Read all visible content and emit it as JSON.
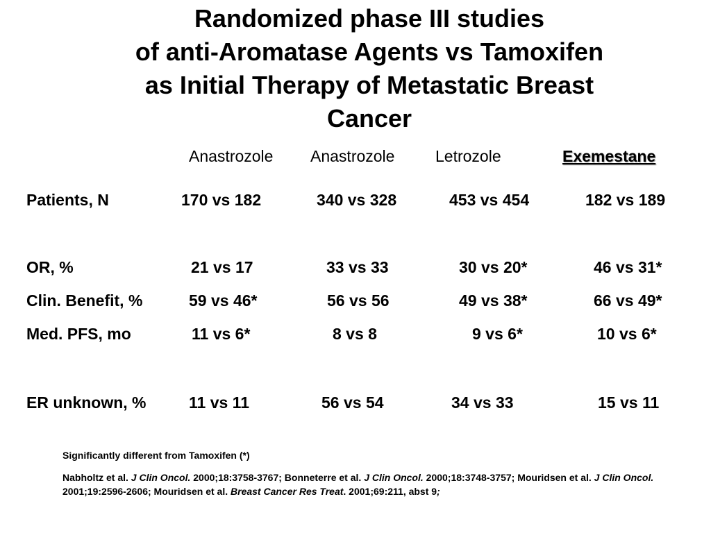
{
  "title": {
    "line1": "Randomized phase III studies",
    "line2": "of anti-Aromatase Agents vs Tamoxifen",
    "line3": "as Initial Therapy of Metastatic Breast",
    "line4": "Cancer"
  },
  "columns": [
    "Anastrozole",
    "Anastrozole",
    "Letrozole",
    "Exemestane"
  ],
  "rows": [
    {
      "label": "Patients, N",
      "values": [
        "170 vs 182",
        "340 vs 328",
        "453 vs 454",
        "182 vs 189"
      ]
    },
    {
      "label": "OR,  %",
      "values": [
        "21 vs 17",
        "33 vs 33",
        "30 vs 20*",
        "46 vs 31*"
      ]
    },
    {
      "label": "Clin. Benefit, %",
      "values": [
        "59 vs 46*",
        "56 vs 56",
        "49 vs 38*",
        "66 vs 49*"
      ]
    },
    {
      "label": "Med.  PFS,  mo",
      "values": [
        "11 vs 6*",
        "8 vs 8",
        "9 vs 6*",
        "10 vs 6*"
      ]
    },
    {
      "label": "ER unknown, %",
      "values": [
        "11 vs 11",
        "56 vs 54",
        "34  vs 33",
        "15 vs 11"
      ]
    }
  ],
  "footnote": "Significantly different from Tamoxifen (*)",
  "references": {
    "r1_author": "Nabholtz et al.  ",
    "r1_journal": "J Clin Oncol.",
    "r1_cite": " 2000;18:3758-3767; Bonneterre et al.  ",
    "r2_journal": "J Clin Oncol.",
    "r2_cite": " 2000;18:3748-3757; Mouridsen et al.  ",
    "r3_journal": "J Clin Oncol.",
    "r3_cite": " 2001;19:2596-2606; Mouridsen et al. ",
    "r4_journal": "Breast Cancer Res Treat",
    "r4_cite": ". 2001;69:211, abst  9",
    "r4_end": ";"
  }
}
